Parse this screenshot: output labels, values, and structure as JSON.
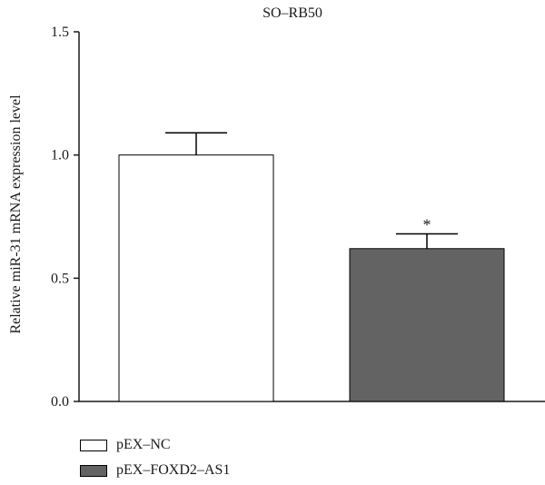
{
  "chart_data": {
    "type": "bar",
    "title": "SO–RB50",
    "ylabel": "Relative miR-31 mRNA expression level",
    "xlabel": "",
    "ylim": [
      0,
      1.5
    ],
    "yticks": [
      "0.0",
      "0.5",
      "1.0",
      "1.5"
    ],
    "categories": [
      "pEX–NC",
      "pEX–FOXD2–AS1"
    ],
    "values": [
      1.0,
      0.62
    ],
    "errors": [
      0.09,
      0.06
    ],
    "annotations": [
      "",
      "*"
    ],
    "colors": [
      "#ffffff",
      "#636363"
    ],
    "legend": {
      "placement": "bottom-left",
      "entries": [
        {
          "label": "pEX–NC",
          "color": "#ffffff"
        },
        {
          "label": "pEX–FOXD2–AS1",
          "color": "#636363"
        }
      ]
    },
    "grid": false
  }
}
